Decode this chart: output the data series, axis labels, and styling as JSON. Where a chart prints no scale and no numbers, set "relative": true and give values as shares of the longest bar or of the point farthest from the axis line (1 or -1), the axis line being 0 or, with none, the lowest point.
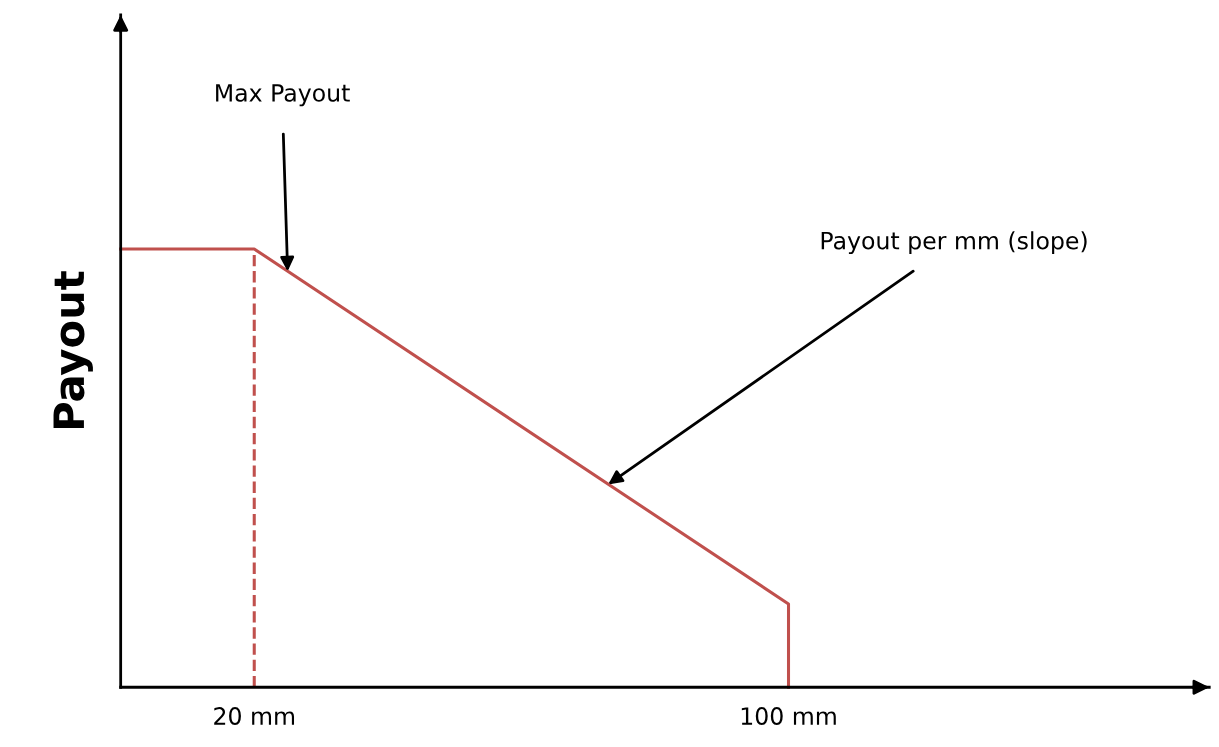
{
  "chart_data": {
    "type": "line",
    "relative": true,
    "ylabel": "Payout",
    "tick_labels": "x",
    "grid": false,
    "legend": false,
    "marker": "none",
    "xlim": [
      0,
      163
    ],
    "xticks": [
      {
        "value": 20,
        "label": "20 mm"
      },
      {
        "value": 100,
        "label": "100 mm"
      }
    ],
    "series": [
      {
        "color": "#c0504d",
        "x": [
          0,
          20,
          100,
          100
        ],
        "values": [
          1,
          1,
          0.19,
          0
        ],
        "line_style": "solid"
      },
      {
        "color": "#c0504d",
        "x": [
          20,
          20
        ],
        "values": [
          0,
          1
        ],
        "line_style": "dashed"
      }
    ],
    "annotations": [
      {
        "text": "Max Payout",
        "x": 25,
        "y": 0.949
      },
      {
        "text": "Payout per mm (slope)",
        "x": 73,
        "y": 0.463
      }
    ]
  }
}
